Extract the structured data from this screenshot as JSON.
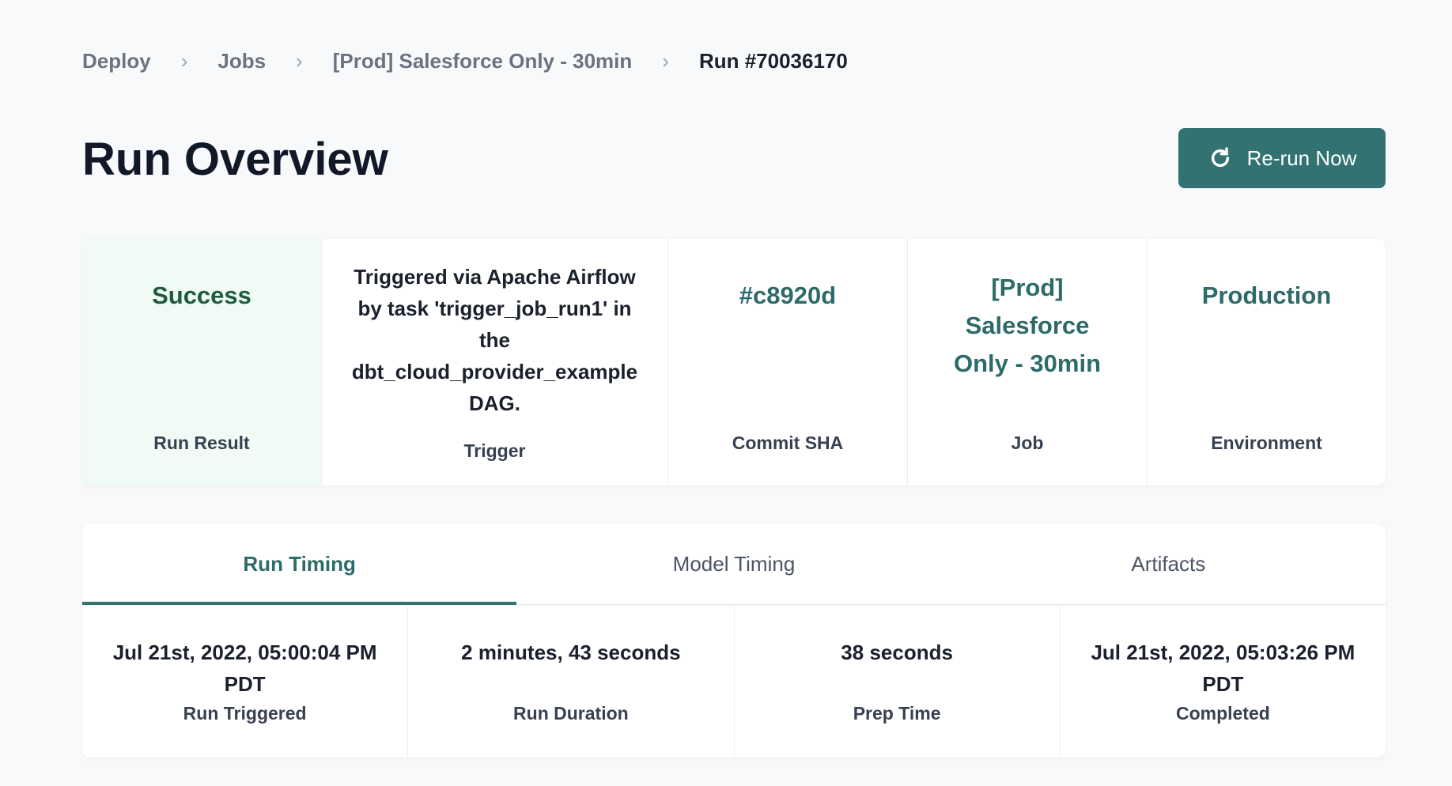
{
  "breadcrumb": [
    "Deploy",
    "Jobs",
    "[Prod] Salesforce Only - 30min",
    "Run #70036170"
  ],
  "page_title": "Run Overview",
  "rerun_label": "Re-run Now",
  "summary": [
    {
      "value": "Success",
      "label": "Run Result"
    },
    {
      "value": "Triggered via Apache Airflow by task 'trigger_job_run1' in the dbt_cloud_provider_example DAG.",
      "label": "Trigger"
    },
    {
      "value": "#c8920d",
      "label": "Commit SHA"
    },
    {
      "value": "[Prod] Salesforce Only - 30min",
      "label": "Job"
    },
    {
      "value": "Production",
      "label": "Environment"
    }
  ],
  "tabs": [
    "Run Timing",
    "Model Timing",
    "Artifacts"
  ],
  "timing": [
    {
      "value": "Jul 21st, 2022, 05:00:04 PM PDT",
      "label": "Run Triggered"
    },
    {
      "value": "2 minutes, 43 seconds",
      "label": "Run Duration"
    },
    {
      "value": "38 seconds",
      "label": "Prep Time"
    },
    {
      "value": "Jul 21st, 2022, 05:03:26 PM PDT",
      "label": "Completed"
    }
  ],
  "colors": {
    "accent": "#327372",
    "success_bg": "#effbf4"
  }
}
